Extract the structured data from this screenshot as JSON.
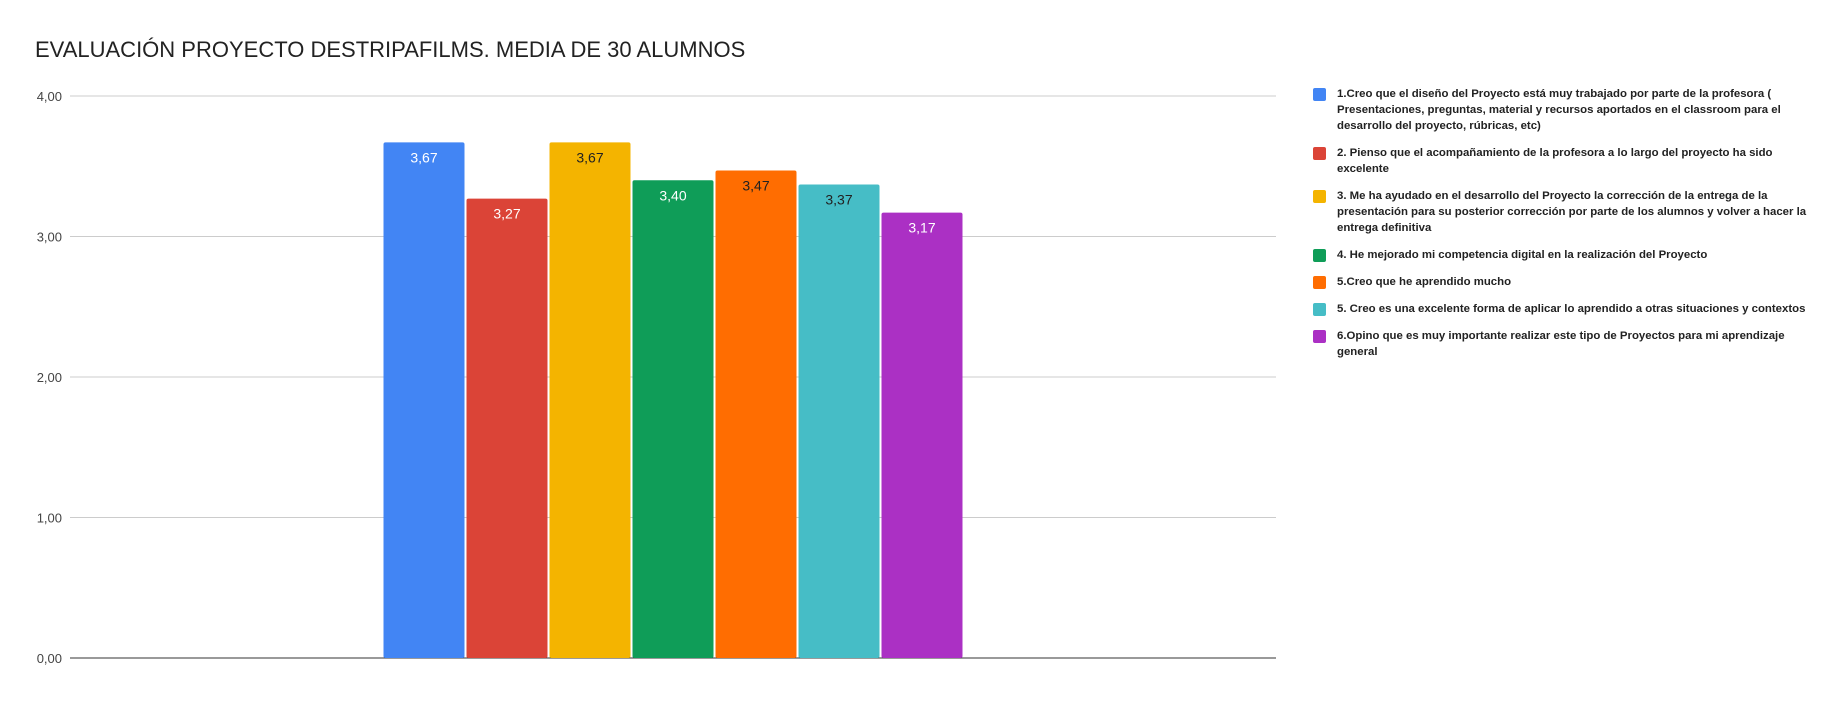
{
  "chart_data": {
    "type": "bar",
    "title": "EVALUACIÓN PROYECTO DESTRIPAFILMS. MEDIA DE 30 ALUMNOS",
    "xlabel": "",
    "ylabel": "",
    "ylim": [
      0,
      4
    ],
    "yticks": [
      "0,00",
      "1,00",
      "2,00",
      "3,00",
      "4,00"
    ],
    "grid": true,
    "legend_position": "right",
    "series": [
      {
        "name": "1.Creo que el diseño del Proyecto está muy trabajado por parte de la profesora ( Presentaciones, preguntas, material y recursos aportados en el classroom para el desarrollo del proyecto, rúbricas, etc)",
        "value": 3.67,
        "label": "3,67",
        "color": "#4285f4",
        "label_color": "#ffffff"
      },
      {
        "name": "2. Pienso que el acompañamiento de la profesora a lo largo del proyecto ha sido excelente",
        "value": 3.27,
        "label": "3,27",
        "color": "#db4437",
        "label_color": "#ffffff"
      },
      {
        "name": "3. Me ha ayudado en el desarrollo del Proyecto la corrección de la entrega de la presentación para su posterior corrección por parte de los alumnos  y volver a hacer la entrega definitiva",
        "value": 3.67,
        "label": "3,67",
        "color": "#f4b400",
        "label_color": "#222222"
      },
      {
        "name": "4. He mejorado mi competencia digital en la realización del Proyecto",
        "value": 3.4,
        "label": "3,40",
        "color": "#0f9d58",
        "label_color": "#ffffff"
      },
      {
        "name": "5.Creo que he aprendido mucho",
        "value": 3.47,
        "label": "3,47",
        "color": "#ff6d01",
        "label_color": "#222222"
      },
      {
        "name": "5. Creo es una excelente forma de aplicar lo aprendido a otras situaciones y contextos",
        "value": 3.37,
        "label": "3,37",
        "color": "#46bdc6",
        "label_color": "#222222"
      },
      {
        "name": "6.Opino que es muy importante realizar este tipo de Proyectos para mi aprendizaje general",
        "value": 3.17,
        "label": "3,17",
        "color": "#ab30c4",
        "label_color": "#ffffff"
      }
    ]
  }
}
